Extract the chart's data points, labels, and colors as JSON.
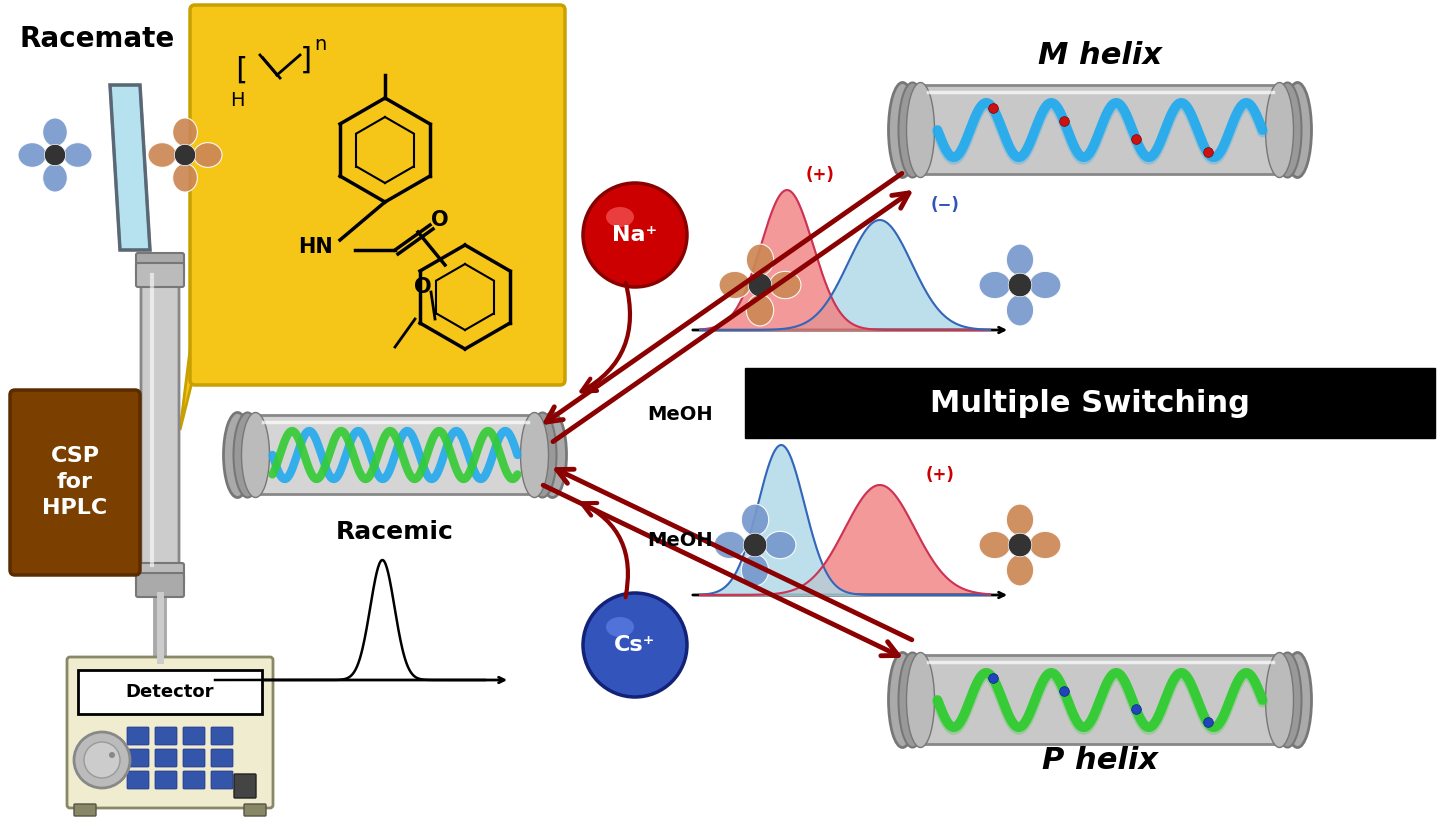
{
  "bg_color": "#ffffff",
  "label_racemate": "Racemate",
  "label_racemic": "Racemic",
  "label_csp": "CSP\nfor\nHPLC",
  "label_detector": "Detector",
  "label_m_helix": "M helix",
  "label_p_helix": "P helix",
  "label_multiple_switching": "Multiple Switching",
  "label_meoh_top": "MeOH",
  "label_meoh_bottom": "MeOH",
  "label_na": "Na⁺",
  "label_cs": "Cs⁺",
  "arrow_color": "#8B0000",
  "csp_box_color": "#7B3F00",
  "chemical_box_color": "#F5C518",
  "multiple_switching_bg": "#000000",
  "multiple_switching_fg": "#ffffff",
  "na_color": "#CC0000",
  "cs_color": "#3355BB",
  "peak_pink": "#F08080",
  "peak_blue": "#ADD8E6",
  "helix_blue": "#22AAEE",
  "helix_green": "#33CC33",
  "cylinder_color": "#BBBBBB"
}
